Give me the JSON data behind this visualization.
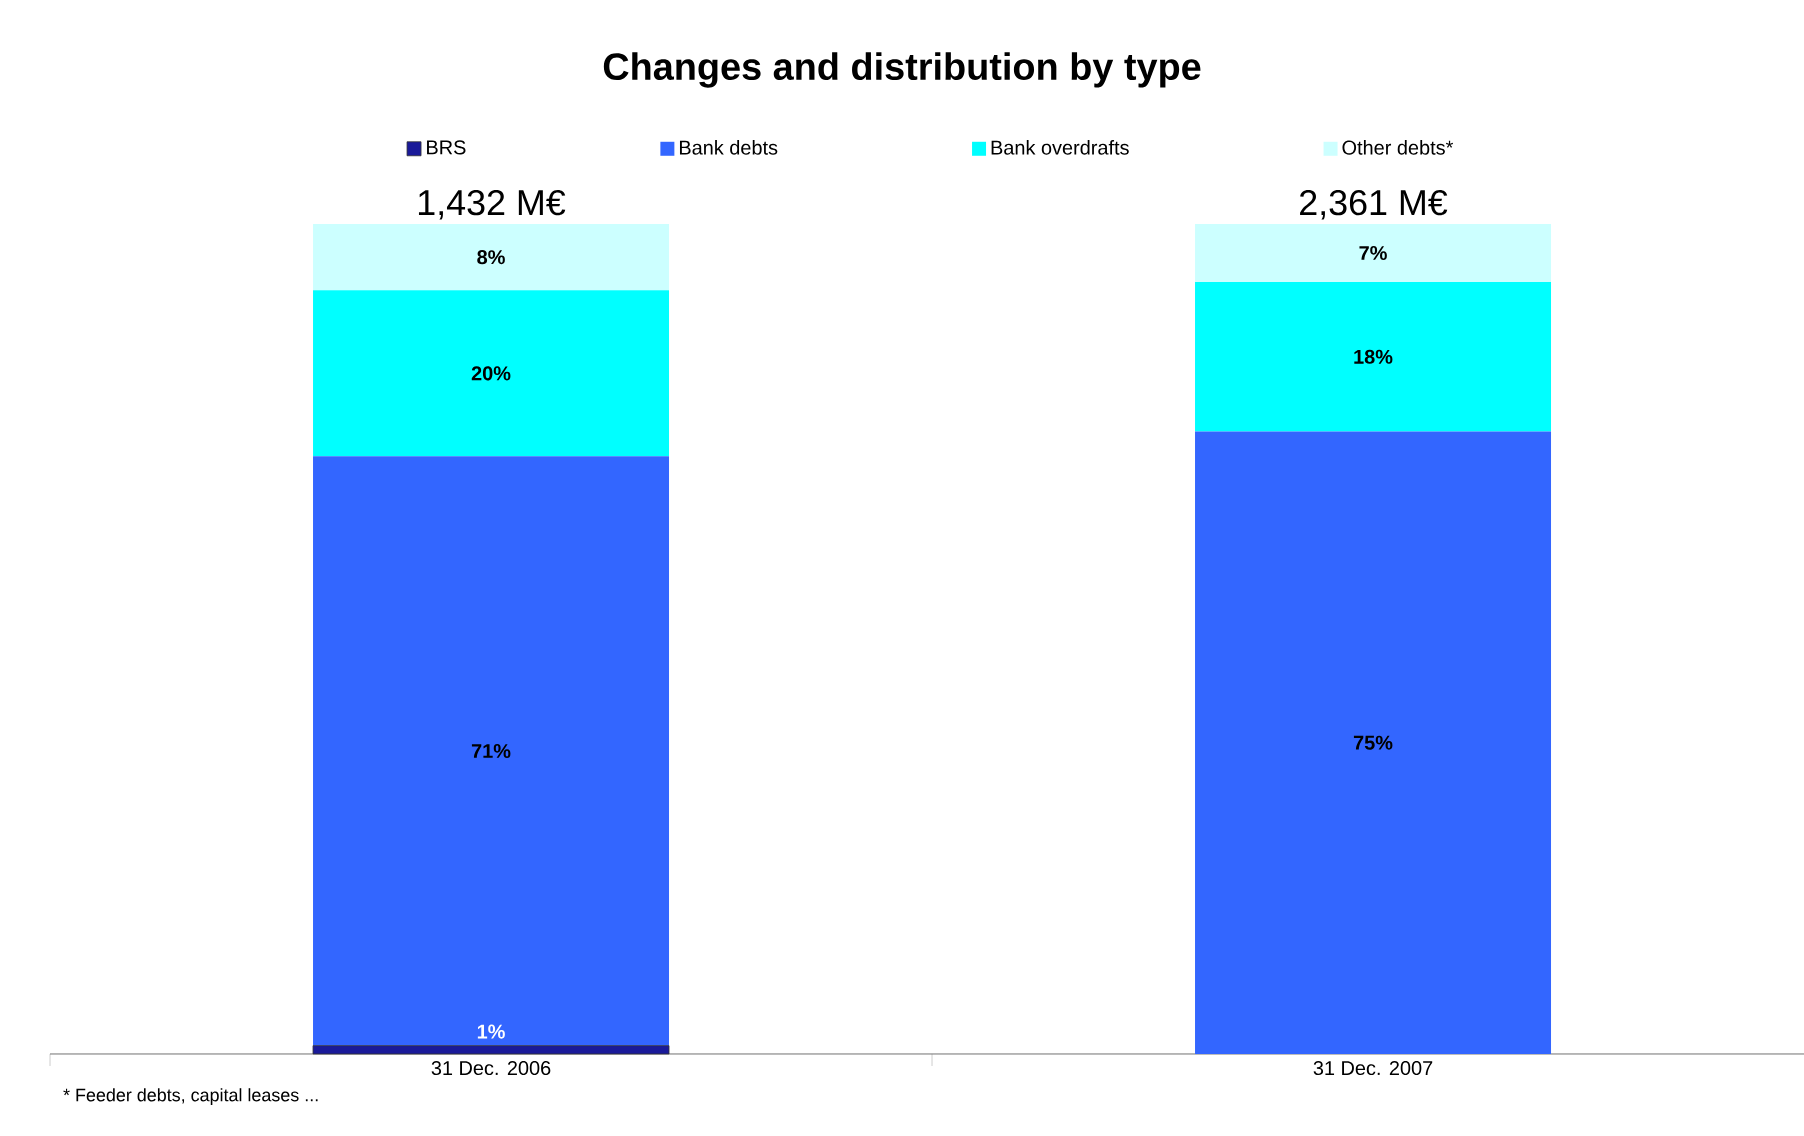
{
  "chart_data": {
    "type": "bar",
    "stacked": true,
    "title": "Changes and distribution by type",
    "categories": [
      "31 Dec. 2006",
      "31 Dec. 2007"
    ],
    "series": [
      {
        "name": "BRS",
        "color": "#1a1a99",
        "values": [
          1,
          null
        ],
        "value_labels": [
          "1%",
          null
        ]
      },
      {
        "name": "Bank debts",
        "color": "#3366ff",
        "values": [
          71,
          75
        ],
        "value_labels": [
          "71%",
          "75%"
        ]
      },
      {
        "name": "Bank overdrafts",
        "color": "#00ffff",
        "values": [
          20,
          18
        ],
        "value_labels": [
          "20%",
          "18%"
        ]
      },
      {
        "name": "Other debts*",
        "color": "#ccffff",
        "values": [
          8,
          7
        ],
        "value_labels": [
          "8%",
          "7%"
        ]
      }
    ],
    "legend": "top",
    "tick_labels": "x",
    "annotations": [
      {
        "text": "1,432 M€",
        "x": "31 Dec. 2006",
        "y": 100
      },
      {
        "text": "2,361 M€",
        "x": "31 Dec. 2007",
        "y": 100
      },
      "* Feeder debts, capital leases ..."
    ]
  }
}
